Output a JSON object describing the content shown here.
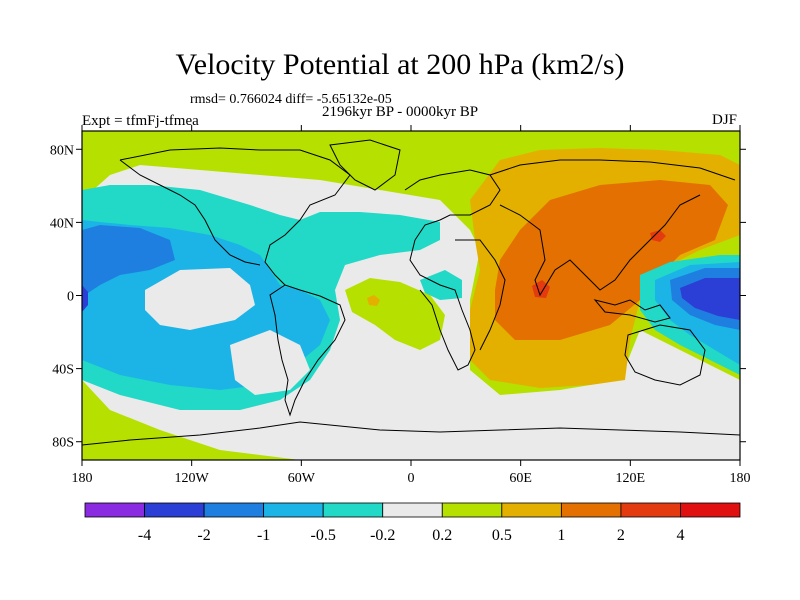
{
  "figure": {
    "title": "Velocity Potential at 200 hPa (km2/s)",
    "stats": "rmsd= 0.766024 diff= -5.65132e-05",
    "experiment": "Expt = tfmFj-tfmea",
    "period": "2196kyr BP - 0000kyr BP",
    "season": "DJF"
  },
  "map": {
    "lon_range": [
      -180,
      180
    ],
    "lat_range": [
      -90,
      90
    ],
    "x_ticks": [
      "180",
      "120W",
      "60W",
      "0",
      "60E",
      "120E",
      "180"
    ],
    "y_ticks": [
      "80N",
      "40N",
      "0",
      "40S",
      "80S"
    ]
  },
  "colorbar": {
    "labels": [
      "-4",
      "-2",
      "-1",
      "-0.5",
      "-0.2",
      "0.2",
      "0.5",
      "1",
      "2",
      "4"
    ],
    "colors": [
      "#8a2be2",
      "#2b3fd6",
      "#1f7fe0",
      "#1cb4e6",
      "#21d9c6",
      "#eaeaea",
      "#b6e000",
      "#e3b000",
      "#e37000",
      "#e33a10",
      "#e01010"
    ]
  },
  "legend_colors": {
    "strong_neg": "#2b3fd6",
    "mid_neg": "#1f7fe0",
    "neg": "#1cb4e6",
    "weak_neg": "#21d9c6",
    "neutral": "#eaeaea",
    "weak_pos": "#b6e000",
    "pos": "#e3b000",
    "mid_pos": "#e37000",
    "strong_pos": "#e33a10"
  }
}
